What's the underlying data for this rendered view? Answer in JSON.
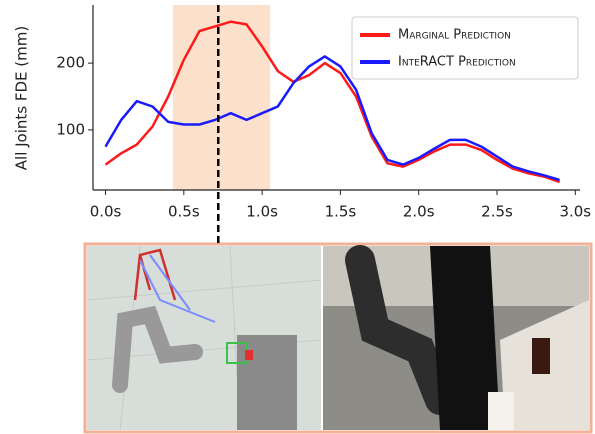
{
  "chart_data": {
    "type": "line",
    "ylabel": "All Joints FDE (mm)",
    "x": [
      0.0,
      0.1,
      0.2,
      0.3,
      0.4,
      0.5,
      0.6,
      0.7,
      0.8,
      0.9,
      1.0,
      1.1,
      1.2,
      1.3,
      1.4,
      1.5,
      1.6,
      1.7,
      1.8,
      1.9,
      2.0,
      2.1,
      2.2,
      2.3,
      2.4,
      2.5,
      2.6,
      2.7,
      2.8,
      2.9
    ],
    "series": [
      {
        "name": "Marginal Prediction",
        "color": "#ff1a1a",
        "values": [
          48,
          65,
          78,
          105,
          150,
          205,
          248,
          255,
          262,
          258,
          225,
          188,
          172,
          182,
          200,
          185,
          150,
          90,
          50,
          45,
          55,
          68,
          78,
          78,
          70,
          55,
          42,
          35,
          30,
          22
        ]
      },
      {
        "name": "InteRACT Prediction",
        "color": "#1a1aff",
        "values": [
          75,
          115,
          143,
          135,
          112,
          108,
          108,
          115,
          125,
          115,
          125,
          135,
          170,
          195,
          210,
          195,
          160,
          95,
          55,
          48,
          58,
          72,
          85,
          85,
          75,
          60,
          45,
          38,
          32,
          25
        ]
      }
    ],
    "xlim": [
      -0.08,
      3.03
    ],
    "ylim": [
      10,
      287
    ],
    "xticks": [
      {
        "value": 0,
        "label": "0.0s"
      },
      {
        "value": 0.5,
        "label": "0.5s"
      },
      {
        "value": 1,
        "label": "1.0s"
      },
      {
        "value": 1.5,
        "label": "1.5s"
      },
      {
        "value": 2,
        "label": "2.0s"
      },
      {
        "value": 2.5,
        "label": "2.5s"
      },
      {
        "value": 3,
        "label": "3.0s"
      }
    ],
    "yticks": [
      100,
      200
    ],
    "highlight_span": [
      0.43,
      1.05
    ],
    "highlight_color": "#fbe0cc",
    "marker_x": 0.72,
    "legend": "upper right"
  }
}
